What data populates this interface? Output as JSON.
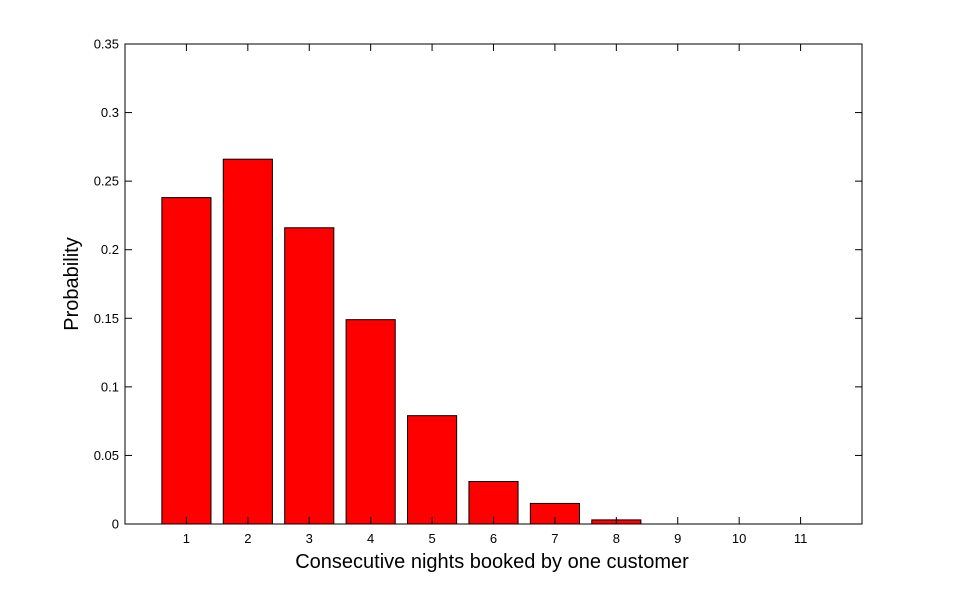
{
  "chart_data": {
    "type": "bar",
    "title": "",
    "xlabel": "Consecutive nights booked by one customer",
    "ylabel": "Probability",
    "categories": [
      "1",
      "2",
      "3",
      "4",
      "5",
      "6",
      "7",
      "8",
      "9",
      "10",
      "11"
    ],
    "values": [
      0.238,
      0.266,
      0.216,
      0.149,
      0.079,
      0.031,
      0.015,
      0.003,
      0,
      0,
      0
    ],
    "xlim": [
      0,
      12
    ],
    "ylim": [
      0,
      0.35
    ],
    "yticks": [
      "0",
      "0.05",
      "0.1",
      "0.15",
      "0.2",
      "0.25",
      "0.3",
      "0.35"
    ],
    "ytick_values": [
      0,
      0.05,
      0.1,
      0.15,
      0.2,
      0.25,
      0.3,
      0.35
    ],
    "grid": false,
    "legend": "none",
    "colors": {
      "bar_fill": "#ff0000",
      "bar_edge": "#000000",
      "axes": "#000000",
      "background": "#ffffff"
    }
  }
}
